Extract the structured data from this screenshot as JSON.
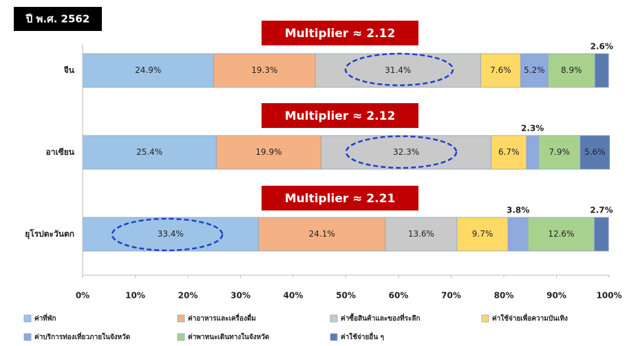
{
  "chart_data": {
    "type": "bar",
    "orientation": "horizontal",
    "stacked": true,
    "title": "ปี พ.ศ. 2562",
    "annotations": [
      "Multiplier ≈ 2.12",
      "Multiplier ≈ 2.12",
      "Multiplier ≈ 2.21"
    ],
    "categories": [
      "จีน",
      "อาเซียน",
      "ยุโรปตะวันตก"
    ],
    "series": [
      {
        "name": "ค่าที่พัก",
        "color": "#9dc3e6",
        "values": [
          24.9,
          25.4,
          33.4
        ],
        "value_labels": [
          "24.9%",
          "25.4%",
          "33.4%"
        ]
      },
      {
        "name": "ค่าอาหารและเครื่องดื่ม",
        "color": "#f4b183",
        "values": [
          19.3,
          19.9,
          24.1
        ],
        "value_labels": [
          "19.3%",
          "19.9%",
          "24.1%"
        ]
      },
      {
        "name": "ค่าซื้อสินค้าและของที่ระลึก",
        "color": "#c9c9c9",
        "values": [
          31.4,
          32.3,
          13.6
        ],
        "value_labels": [
          "31.4%",
          "32.3%",
          "13.6%"
        ]
      },
      {
        "name": "ค่าใช้จ่ายเพื่อความบันเทิง",
        "color": "#ffd966",
        "values": [
          7.6,
          6.7,
          9.7
        ],
        "value_labels": [
          "7.6%",
          "6.7%",
          "9.7%"
        ]
      },
      {
        "name": "ค่าบริการท่องเที่ยวภายในจังหวัด",
        "color": "#8faadc",
        "values": [
          5.2,
          2.3,
          3.8
        ],
        "value_labels": [
          "5.2%",
          "2.3%",
          "3.8%"
        ]
      },
      {
        "name": "ค่าพาหนะเดินทางในจังหวัด",
        "color": "#a9d18e",
        "values": [
          8.9,
          7.9,
          12.6
        ],
        "value_labels": [
          "8.9%",
          "7.9%",
          "12.6%"
        ]
      },
      {
        "name": "ค่าใช้จ่ายอื่น ๆ",
        "color": "#5a7bb0",
        "values": [
          2.6,
          5.6,
          2.7
        ],
        "value_labels": [
          "2.6%",
          "5.6%",
          "2.7%"
        ]
      }
    ],
    "xlim": [
      0,
      100
    ],
    "xticks": [
      {
        "value": 0,
        "label": "0%"
      },
      {
        "value": 10,
        "label": "10%"
      },
      {
        "value": 20,
        "label": "20%"
      },
      {
        "value": 30,
        "label": "30%"
      },
      {
        "value": 40,
        "label": "40%"
      },
      {
        "value": 50,
        "label": "50%"
      },
      {
        "value": 60,
        "label": "60%"
      },
      {
        "value": 70,
        "label": "70%"
      },
      {
        "value": 80,
        "label": "80%"
      },
      {
        "value": 90,
        "label": "90%"
      },
      {
        "value": 100,
        "label": "100%"
      }
    ],
    "legend": "bottom"
  }
}
